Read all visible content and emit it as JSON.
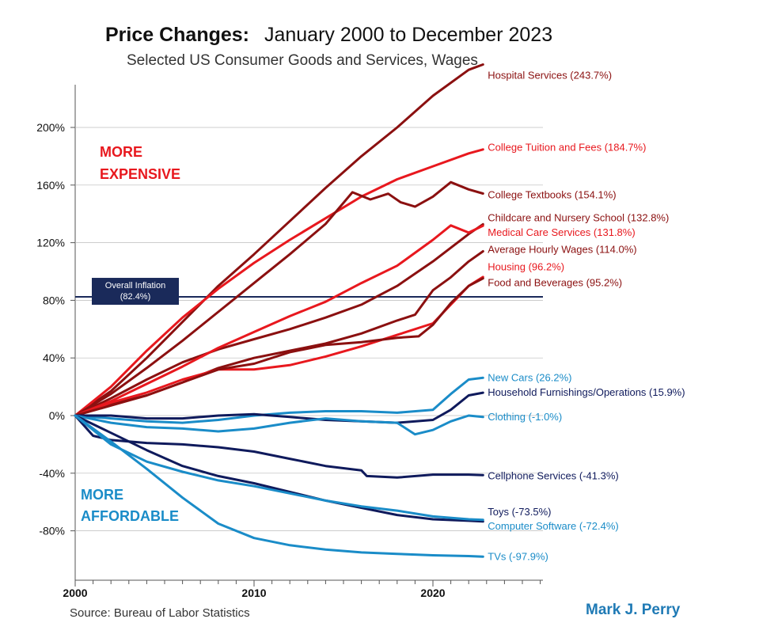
{
  "chart_data": {
    "type": "line",
    "title": "Price Changes:",
    "title_rest": "January 2000 to December 2023",
    "subtitle": "Selected US Consumer Goods and Services, Wages",
    "y_ticks": [
      "200%",
      "160%",
      "120%",
      "80%",
      "40%",
      "0%",
      "-40%",
      "-80%"
    ],
    "y_tick_values": [
      200,
      160,
      120,
      80,
      40,
      0,
      -40,
      -80
    ],
    "x_ticks": [
      "2000",
      "2010",
      "2020"
    ],
    "x_tick_values": [
      2000,
      2010,
      2020
    ],
    "xlim": [
      2000,
      2026
    ],
    "ylim": [
      -100,
      230
    ],
    "grid": false,
    "more_expensive": [
      "MORE",
      "EXPENSIVE"
    ],
    "more_affordable": [
      "MORE",
      "AFFORDABLE"
    ],
    "inflation": {
      "value": 82.4,
      "label_1": "Overall Inflation",
      "label_2": "(82.4%)"
    },
    "source": "Source: Bureau of Labor Statistics",
    "author": "Mark J. Perry",
    "colors": {
      "dark_red": "#8b1010",
      "red": "#e8181e",
      "navy": "#0f1a5c",
      "blue": "#1a8cc8",
      "inflation": "#1a2a5a"
    },
    "series": [
      {
        "name": "Hospital Services (243.7%)",
        "color": "#8b1010",
        "label_y": 236,
        "points": [
          [
            2000,
            0
          ],
          [
            2002,
            17
          ],
          [
            2004,
            40
          ],
          [
            2006,
            65
          ],
          [
            2008,
            90
          ],
          [
            2010,
            112
          ],
          [
            2012,
            135
          ],
          [
            2014,
            158
          ],
          [
            2016,
            180
          ],
          [
            2018,
            200
          ],
          [
            2020,
            222
          ],
          [
            2022,
            240
          ],
          [
            2022.8,
            243.7
          ]
        ]
      },
      {
        "name": "College Tuition and Fees (184.7%)",
        "color": "#e8181e",
        "label_y": 186,
        "points": [
          [
            2000,
            0
          ],
          [
            2002,
            20
          ],
          [
            2004,
            45
          ],
          [
            2006,
            68
          ],
          [
            2008,
            88
          ],
          [
            2010,
            106
          ],
          [
            2012,
            122
          ],
          [
            2014,
            137
          ],
          [
            2016,
            152
          ],
          [
            2018,
            164
          ],
          [
            2020,
            173
          ],
          [
            2022,
            182
          ],
          [
            2022.8,
            184.7
          ]
        ]
      },
      {
        "name": "College Textbooks (154.1%)",
        "color": "#8b1010",
        "label_y": 153,
        "points": [
          [
            2000,
            0
          ],
          [
            2002,
            15
          ],
          [
            2004,
            33
          ],
          [
            2006,
            52
          ],
          [
            2008,
            72
          ],
          [
            2010,
            92
          ],
          [
            2012,
            112
          ],
          [
            2014,
            133
          ],
          [
            2015.5,
            155
          ],
          [
            2016.5,
            150
          ],
          [
            2017.5,
            154
          ],
          [
            2018.2,
            148
          ],
          [
            2019,
            145
          ],
          [
            2020,
            152
          ],
          [
            2021,
            162
          ],
          [
            2022,
            157
          ],
          [
            2022.8,
            154.1
          ]
        ]
      },
      {
        "name": "Childcare and Nursery School (132.8%)",
        "color": "#8b1010",
        "label_y": 137,
        "points": [
          [
            2000,
            0
          ],
          [
            2002,
            12
          ],
          [
            2004,
            25
          ],
          [
            2006,
            37
          ],
          [
            2008,
            46
          ],
          [
            2010,
            53
          ],
          [
            2012,
            60
          ],
          [
            2014,
            68
          ],
          [
            2016,
            77
          ],
          [
            2018,
            90
          ],
          [
            2020,
            107
          ],
          [
            2022,
            126
          ],
          [
            2022.8,
            132.8
          ]
        ]
      },
      {
        "name": "Medical Care Services (131.8%)",
        "color": "#e8181e",
        "label_y": 127,
        "points": [
          [
            2000,
            0
          ],
          [
            2002,
            10
          ],
          [
            2004,
            22
          ],
          [
            2006,
            34
          ],
          [
            2008,
            47
          ],
          [
            2010,
            58
          ],
          [
            2012,
            69
          ],
          [
            2014,
            79
          ],
          [
            2016,
            92
          ],
          [
            2018,
            104
          ],
          [
            2020,
            122
          ],
          [
            2021,
            132
          ],
          [
            2022,
            127
          ],
          [
            2022.8,
            131.8
          ]
        ]
      },
      {
        "name": "Average Hourly Wages (114.0%)",
        "color": "#8b1010",
        "label_y": 115,
        "points": [
          [
            2000,
            0
          ],
          [
            2002,
            8
          ],
          [
            2004,
            14
          ],
          [
            2006,
            23
          ],
          [
            2008,
            33
          ],
          [
            2010,
            40
          ],
          [
            2012,
            45
          ],
          [
            2014,
            50
          ],
          [
            2016,
            57
          ],
          [
            2018,
            66
          ],
          [
            2019,
            70
          ],
          [
            2020,
            87
          ],
          [
            2021,
            96
          ],
          [
            2022,
            107
          ],
          [
            2022.8,
            114
          ]
        ]
      },
      {
        "name": "Housing (96.2%)",
        "color": "#e8181e",
        "label_y": 103,
        "points": [
          [
            2000,
            0
          ],
          [
            2002,
            9
          ],
          [
            2004,
            16
          ],
          [
            2006,
            25
          ],
          [
            2008,
            32
          ],
          [
            2010,
            32
          ],
          [
            2012,
            35
          ],
          [
            2014,
            41
          ],
          [
            2016,
            48
          ],
          [
            2018,
            56
          ],
          [
            2020,
            64
          ],
          [
            2021,
            77
          ],
          [
            2022,
            90
          ],
          [
            2022.8,
            96.2
          ]
        ]
      },
      {
        "name": "Food and Beverages (95.2%)",
        "color": "#8b1010",
        "label_y": 92,
        "points": [
          [
            2000,
            0
          ],
          [
            2002,
            7
          ],
          [
            2004,
            14
          ],
          [
            2006,
            23
          ],
          [
            2008,
            32
          ],
          [
            2010,
            36
          ],
          [
            2012,
            44
          ],
          [
            2014,
            49
          ],
          [
            2016,
            51
          ],
          [
            2018,
            54
          ],
          [
            2019.2,
            55
          ],
          [
            2020,
            63
          ],
          [
            2021,
            78
          ],
          [
            2022,
            90
          ],
          [
            2022.8,
            95.2
          ]
        ]
      },
      {
        "name": "New Cars (26.2%)",
        "color": "#1a8cc8",
        "label_y": 26,
        "points": [
          [
            2000,
            0
          ],
          [
            2002,
            -2
          ],
          [
            2004,
            -4
          ],
          [
            2006,
            -5
          ],
          [
            2008,
            -3
          ],
          [
            2010,
            0
          ],
          [
            2012,
            2
          ],
          [
            2014,
            3
          ],
          [
            2016,
            3
          ],
          [
            2018,
            2
          ],
          [
            2020,
            4
          ],
          [
            2021,
            15
          ],
          [
            2022,
            25
          ],
          [
            2022.8,
            26.2
          ]
        ]
      },
      {
        "name": "Household Furnishings/Operations (15.9%)",
        "color": "#0f1a5c",
        "label_y": 16,
        "points": [
          [
            2000,
            0
          ],
          [
            2002,
            0
          ],
          [
            2004,
            -2
          ],
          [
            2006,
            -2
          ],
          [
            2008,
            0
          ],
          [
            2010,
            1
          ],
          [
            2012,
            -1
          ],
          [
            2014,
            -3
          ],
          [
            2016,
            -4
          ],
          [
            2018,
            -5
          ],
          [
            2020,
            -3
          ],
          [
            2021,
            4
          ],
          [
            2022,
            14
          ],
          [
            2022.8,
            15.9
          ]
        ]
      },
      {
        "name": "Clothing (-1.0%)",
        "color": "#1a8cc8",
        "label_y": -1,
        "points": [
          [
            2000,
            0
          ],
          [
            2002,
            -5
          ],
          [
            2004,
            -8
          ],
          [
            2006,
            -9
          ],
          [
            2008,
            -11
          ],
          [
            2010,
            -9
          ],
          [
            2012,
            -5
          ],
          [
            2014,
            -2
          ],
          [
            2016,
            -4
          ],
          [
            2018,
            -5
          ],
          [
            2019,
            -13
          ],
          [
            2020,
            -10
          ],
          [
            2021,
            -4
          ],
          [
            2022,
            0
          ],
          [
            2022.8,
            -1
          ]
        ]
      },
      {
        "name": "Cellphone Services (-41.3%)",
        "color": "#0f1a5c",
        "label_y": -42,
        "points": [
          [
            2000,
            0
          ],
          [
            2001,
            -14
          ],
          [
            2002,
            -17
          ],
          [
            2004,
            -19
          ],
          [
            2006,
            -20
          ],
          [
            2008,
            -22
          ],
          [
            2010,
            -25
          ],
          [
            2012,
            -30
          ],
          [
            2014,
            -35
          ],
          [
            2016,
            -38
          ],
          [
            2016.3,
            -42
          ],
          [
            2018,
            -43
          ],
          [
            2020,
            -41
          ],
          [
            2022,
            -41
          ],
          [
            2022.8,
            -41.3
          ]
        ]
      },
      {
        "name": "Toys (-73.5%)",
        "color": "#0f1a5c",
        "label_y": -67,
        "points": [
          [
            2000,
            0
          ],
          [
            2002,
            -12
          ],
          [
            2004,
            -24
          ],
          [
            2006,
            -35
          ],
          [
            2008,
            -42
          ],
          [
            2010,
            -47
          ],
          [
            2012,
            -53
          ],
          [
            2014,
            -59
          ],
          [
            2016,
            -64
          ],
          [
            2018,
            -69
          ],
          [
            2020,
            -72
          ],
          [
            2022,
            -73
          ],
          [
            2022.8,
            -73.5
          ]
        ]
      },
      {
        "name": "Computer Software (-72.4%)",
        "color": "#1a8cc8",
        "label_y": -77,
        "points": [
          [
            2000,
            0
          ],
          [
            2002,
            -20
          ],
          [
            2004,
            -32
          ],
          [
            2006,
            -39
          ],
          [
            2008,
            -45
          ],
          [
            2010,
            -49
          ],
          [
            2012,
            -54
          ],
          [
            2014,
            -59
          ],
          [
            2016,
            -63
          ],
          [
            2018,
            -66
          ],
          [
            2020,
            -70
          ],
          [
            2022,
            -72
          ],
          [
            2022.8,
            -72.4
          ]
        ]
      },
      {
        "name": "TVs (-97.9%)",
        "color": "#1a8cc8",
        "label_y": -98,
        "points": [
          [
            2000,
            0
          ],
          [
            2002,
            -18
          ],
          [
            2004,
            -37
          ],
          [
            2006,
            -57
          ],
          [
            2008,
            -75
          ],
          [
            2010,
            -85
          ],
          [
            2012,
            -90
          ],
          [
            2014,
            -93
          ],
          [
            2016,
            -95
          ],
          [
            2018,
            -96
          ],
          [
            2020,
            -97
          ],
          [
            2022,
            -97.5
          ],
          [
            2022.8,
            -97.9
          ]
        ]
      }
    ]
  }
}
